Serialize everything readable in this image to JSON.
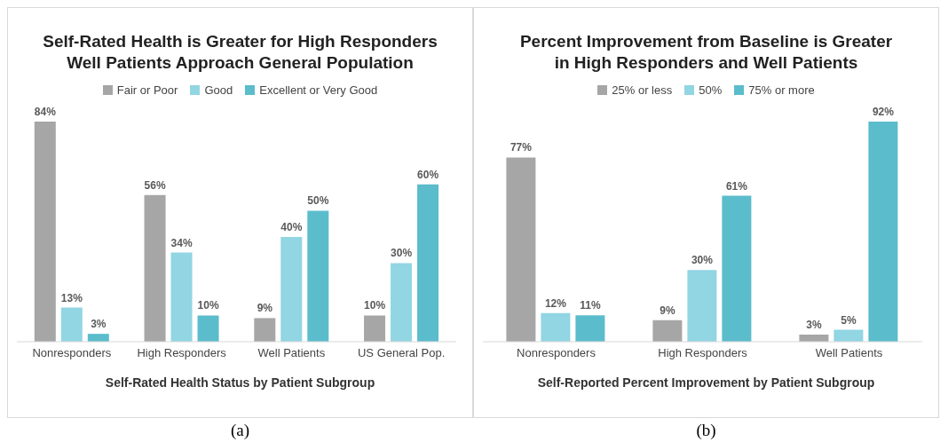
{
  "chart_data": [
    {
      "type": "bar",
      "title": "Self-Rated Health is Greater for High Responders\nWell Patients Approach General Population",
      "xlabel": "Self-Rated Health Status by Patient Subgroup",
      "categories": [
        "Nonresponders",
        "High Responders",
        "Well Patients",
        "US General Pop."
      ],
      "legend": "top",
      "annotations": [
        "(a)"
      ],
      "series": [
        {
          "name": "Fair or Poor",
          "color": "#a6a6a6",
          "values": [
            84,
            56,
            9,
            10
          ],
          "value_labels": [
            "84%",
            "56%",
            "9%",
            "10%"
          ]
        },
        {
          "name": "Good",
          "color": "#92d5e3",
          "values": [
            13,
            34,
            40,
            30
          ],
          "value_labels": [
            "13%",
            "34%",
            "40%",
            "30%"
          ]
        },
        {
          "name": "Excellent or Very Good",
          "color": "#5bbccc",
          "values": [
            3,
            10,
            50,
            60
          ],
          "value_labels": [
            "3%",
            "10%",
            "50%",
            "60%"
          ]
        }
      ]
    },
    {
      "type": "bar",
      "title": "Percent Improvement from Baseline is Greater\nin High Responders and Well Patients",
      "xlabel": "Self-Reported Percent Improvement by Patient Subgroup",
      "categories": [
        "Nonresponders",
        "High Responders",
        "Well Patients"
      ],
      "legend": "top",
      "annotations": [
        "(b)"
      ],
      "series": [
        {
          "name": "25% or less",
          "color": "#a6a6a6",
          "values": [
            77,
            9,
            3
          ],
          "value_labels": [
            "77%",
            "9%",
            "3%"
          ]
        },
        {
          "name": "50%",
          "color": "#92d5e3",
          "values": [
            12,
            30,
            5
          ],
          "value_labels": [
            "12%",
            "30%",
            "5%"
          ]
        },
        {
          "name": "75% or more",
          "color": "#5bbccc",
          "values": [
            11,
            61,
            92
          ],
          "value_labels": [
            "11%",
            "61%",
            "92%"
          ]
        }
      ]
    }
  ]
}
